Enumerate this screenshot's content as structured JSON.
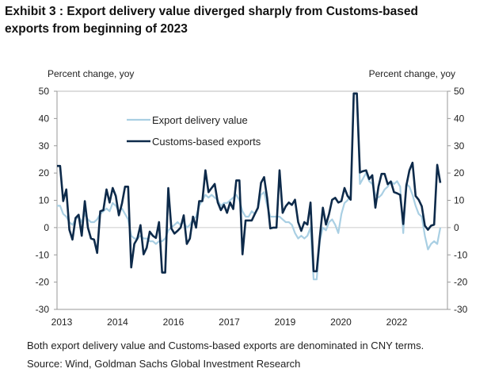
{
  "title_line1": "Exhibit 3 : Export delivery value diverged sharply from Customs-based",
  "title_line2": "exports from beginning of 2023",
  "footnote": "Both export delivery value and Customs-based exports are denominated in CNY terms.",
  "source": "Source: Wind, Goldman Sachs Global Investment Research",
  "chart_data": {
    "type": "line",
    "ylabel_left": "Percent change, yoy",
    "ylabel_right": "Percent change, yoy",
    "ylim": [
      -30,
      50
    ],
    "yticks": [
      50,
      40,
      30,
      20,
      10,
      0,
      -10,
      -20,
      -30
    ],
    "xtick_labels": [
      "2013",
      "2014",
      "2016",
      "2017",
      "2019",
      "2020",
      "2022"
    ],
    "legend_placement": "top-left",
    "grid": false,
    "series": [
      {
        "name": "Export delivery value",
        "color": "#a9cfe3",
        "values": [
          8,
          8,
          5,
          4,
          2,
          1,
          3,
          4,
          2,
          5,
          3,
          2,
          2,
          3,
          5,
          6,
          7,
          6,
          9,
          8,
          6,
          7,
          5,
          3,
          -3,
          -4,
          -4,
          -3,
          -4,
          -4,
          -5,
          -5,
          -6,
          -5,
          -5,
          -4,
          -1,
          0,
          1,
          2,
          1,
          2,
          0,
          1,
          3,
          4,
          8,
          10,
          12,
          11,
          12,
          11,
          10,
          8,
          9,
          9,
          10,
          11,
          12,
          10,
          6,
          4,
          4,
          6,
          5,
          7,
          12,
          13,
          8,
          4,
          4,
          4,
          4,
          3,
          2,
          2,
          1,
          -2,
          -4,
          -3,
          -4,
          -3,
          0,
          -19,
          -19,
          -5,
          0,
          -1,
          2,
          3,
          1,
          -2,
          5,
          9,
          10,
          12,
          49,
          49,
          16,
          18,
          20,
          17,
          16,
          12,
          11,
          12,
          14,
          15,
          17,
          16,
          17,
          15,
          -2,
          16,
          15,
          12,
          8,
          5,
          4,
          -3,
          -8,
          -6,
          -5,
          -6,
          0
        ]
      },
      {
        "name": "Customs-based exports",
        "color": "#0d2a4a",
        "values": [
          22.6,
          22.6,
          9.7,
          14,
          -0.8,
          -4.4,
          3.5,
          4.7,
          -3,
          9.7,
          0,
          -4,
          -4.4,
          -9.3,
          6,
          6.4,
          14,
          9.2,
          14.5,
          11.6,
          4.5,
          8.8,
          15,
          15,
          -14.6,
          -6,
          -4,
          0.9,
          -9.8,
          -7.4,
          -1.5,
          -3,
          -3.8,
          2,
          -16.5,
          -16.5,
          14.5,
          -0.3,
          -2.2,
          -1.2,
          0,
          4.5,
          -6,
          -4,
          4,
          0,
          9.7,
          9.7,
          21,
          13,
          14.5,
          16,
          9.2,
          6.4,
          8.3,
          5.4,
          9.2,
          6.8,
          17.3,
          17.3,
          -9.8,
          2.6,
          2.6,
          2.6,
          5,
          7.3,
          16.4,
          18.5,
          10.7,
          -0.3,
          0,
          0,
          21,
          5.4,
          7.8,
          9.2,
          8.3,
          10.2,
          2,
          -1.2,
          2,
          1.1,
          9.2,
          -16,
          -16,
          -3.6,
          7.3,
          1.1,
          5,
          10.2,
          10.9,
          9.2,
          9.7,
          14.5,
          11.6,
          10.2,
          49.2,
          49.2,
          20.2,
          20.7,
          21,
          17.8,
          19.2,
          7.3,
          15,
          19.7,
          19.7,
          15.9,
          16.9,
          13,
          12.6,
          12,
          1.3,
          15.4,
          21,
          23.8,
          11.6,
          10.2,
          7.8,
          0.7,
          -0.8,
          0.7,
          1.1,
          23,
          16.4
        ]
      }
    ]
  }
}
